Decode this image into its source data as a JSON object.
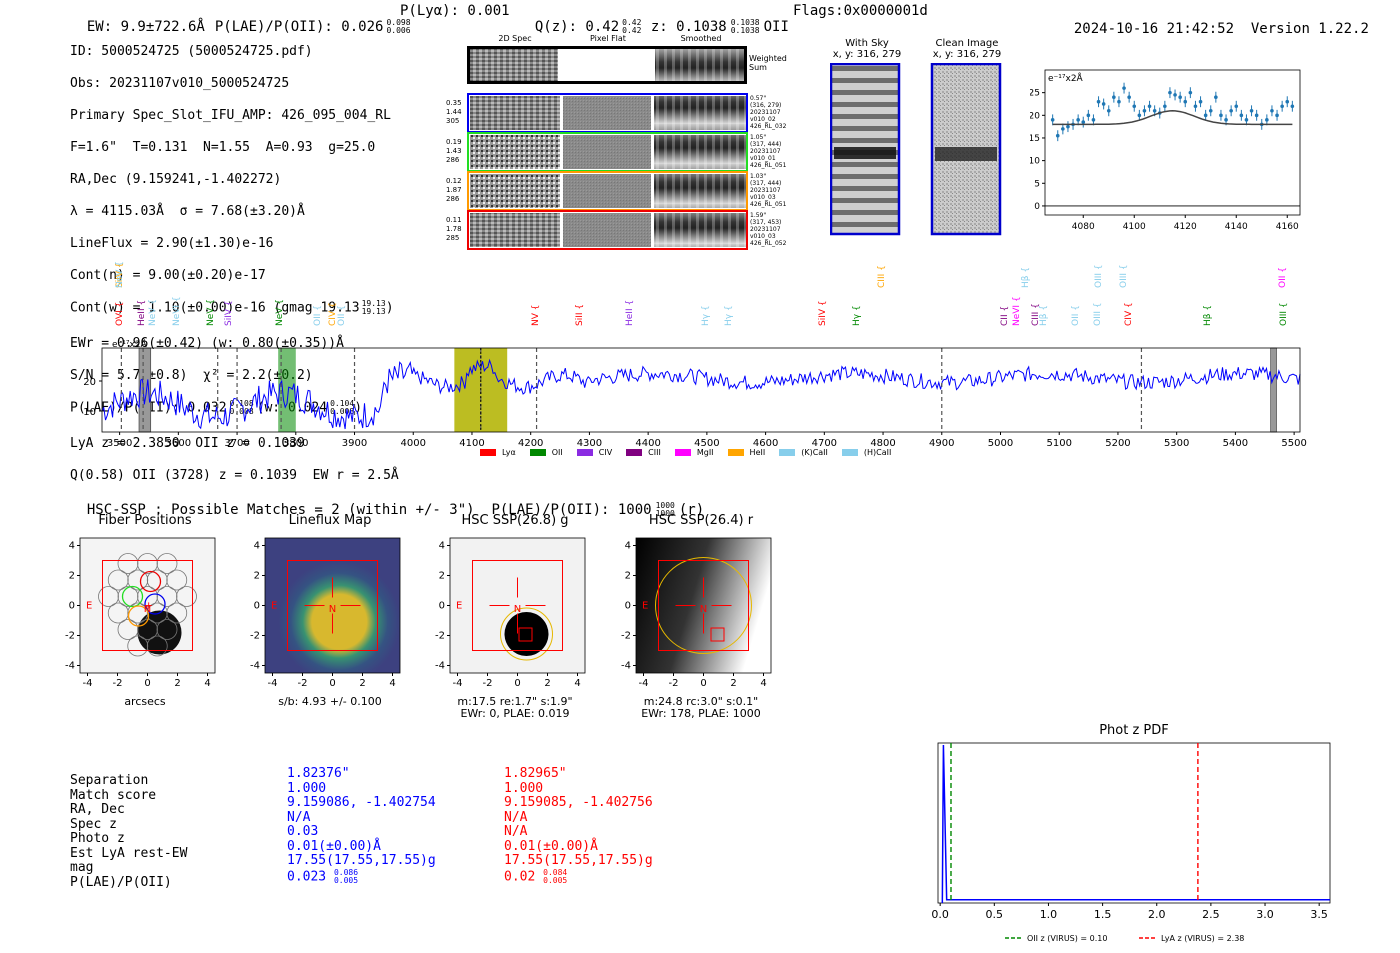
{
  "header": {
    "ew": "EW: 9.9±722.6Å",
    "plae_label": "P(LAE)/P(OII): 0.026",
    "plae_hi": "0.098",
    "plae_lo": "0.006",
    "plya": "P(Lyα): 0.001",
    "qz_label": "Q(z): 0.42",
    "qz_hi": "0.42",
    "qz_lo": "0.42",
    "z_label": "z: 0.1038",
    "z_hi": "0.1038",
    "z_lo": "0.1038",
    "z_line": "OII",
    "flags": "Flags:0x0000001d",
    "datetime": "2024-10-16 21:42:52",
    "version": "Version 1.22.2"
  },
  "info": {
    "id": "ID: 5000524725 (5000524725.pdf)",
    "obs": "Obs: 20231107v010_5000524725",
    "spec": "Primary Spec_Slot_IFU_AMP: 426_095_004_RL",
    "fit": "F=1.6\"  T=0.131  N=1.55  A=0.93  g=25.0",
    "radec": "RA,Dec (9.159241,-1.402272)",
    "lambda": "λ = 4115.03Å  σ = 7.68(±3.20)Å",
    "lineflux": "LineFlux = 2.90(±1.30)e-16",
    "contn": "Cont(n) = 9.00(±0.20)e-17",
    "contw": "Cont(w) = 1.10(±0.00)e-16 (gmag 19.13",
    "contw_hi": "19.13",
    "contw_lo": "19.13",
    "ewr": "EWr = 0.96(±0.42) (w: 0.80(±0.35))Å",
    "sn": "S/N = 5.7(±0.8)  χ² = 2.2(±0.2)",
    "plae": "P(LAE)/P(OII): 0.032",
    "plae_hi": "0.108",
    "plae_lo": "0.008",
    "plae_w": "(w: 0.024",
    "plae_w_hi": "0.104",
    "plae_w_lo": "0.008",
    "lya": "LyA z = 2.3850  OII z = 0.1039",
    "q": "Q(0.58) OII (3728) z = 0.1039  EW r = 2.5Å"
  },
  "cutouts": {
    "col_2d": "2D Spec",
    "col_flat": "Pixel Flat",
    "col_smooth": "Smoothed",
    "weighted": "Weighted Sum",
    "rows": [
      {
        "left": [
          "0.35",
          "1.44",
          "305"
        ],
        "right": [
          "0.57\"",
          "(316, 279)",
          "20231107",
          "v010_02",
          "426_RL_032"
        ],
        "color": "#0000ee"
      },
      {
        "left": [
          "0.19",
          "1.43",
          "286"
        ],
        "right": [
          "1.05\"",
          "(317, 444)",
          "20231107",
          "v010_01",
          "426_RL_051"
        ],
        "color": "#22dd22"
      },
      {
        "left": [
          "0.12",
          "1.87",
          "286"
        ],
        "right": [
          "1.03\"",
          "(317, 444)",
          "20231107",
          "v010_03",
          "426_RL_051"
        ],
        "color": "#ff9900"
      },
      {
        "left": [
          "0.11",
          "1.78",
          "285"
        ],
        "right": [
          "1.59\"",
          "(317, 453)",
          "20231107",
          "v010_03",
          "426_RL_052"
        ],
        "color": "#ee0000"
      }
    ],
    "with_sky": "With Sky",
    "with_sky_xy": "x, y: 316, 279",
    "clean": "Clean Image",
    "clean_xy": "x, y: 316, 279"
  },
  "chart_data": [
    {
      "type": "scatter",
      "title": "",
      "ylabel": "e⁻¹⁷x2Å",
      "xlim": [
        4065,
        4165
      ],
      "ylim": [
        -2,
        30
      ],
      "xticks": [
        "4080",
        "4100",
        "4120",
        "4140",
        "4160"
      ],
      "yticks": [
        "0",
        "5",
        "10",
        "15",
        "20",
        "25"
      ],
      "points_x": [
        4068,
        4070,
        4072,
        4074,
        4076,
        4078,
        4080,
        4082,
        4084,
        4086,
        4088,
        4090,
        4092,
        4094,
        4096,
        4098,
        4100,
        4102,
        4104,
        4106,
        4108,
        4110,
        4112,
        4114,
        4116,
        4118,
        4120,
        4122,
        4124,
        4126,
        4128,
        4130,
        4132,
        4134,
        4136,
        4138,
        4140,
        4142,
        4144,
        4146,
        4148,
        4150,
        4152,
        4154,
        4156,
        4158,
        4160,
        4162
      ],
      "points_y": [
        19,
        15.5,
        17,
        17.5,
        18,
        19,
        18.5,
        20,
        19,
        23,
        22.5,
        21,
        24,
        23,
        26,
        24,
        22,
        20,
        21,
        22,
        21,
        20.5,
        22,
        25,
        24.5,
        24,
        23,
        25,
        22,
        23,
        20,
        21,
        24,
        20,
        19,
        21,
        22,
        20,
        19,
        21,
        20,
        18,
        19,
        21,
        20,
        22,
        23,
        22
      ],
      "model_peak": 4115,
      "model_base": 18.0,
      "model_amp": 3.0,
      "model_sigma": 8.5
    },
    {
      "type": "line",
      "xlim": [
        3470,
        5510
      ],
      "ylim": [
        3,
        31
      ],
      "ylabel": "e⁻¹⁷x2Å",
      "xticks": [
        "3500",
        "3600",
        "3700",
        "3800",
        "3900",
        "4000",
        "4100",
        "4200",
        "4300",
        "4400",
        "4500",
        "4600",
        "4700",
        "4800",
        "4900",
        "5000",
        "5100",
        "5200",
        "5300",
        "5400",
        "5500"
      ],
      "yticks": [
        "10",
        "20"
      ],
      "legend": [
        {
          "label": "Lyα",
          "color": "#ff0000"
        },
        {
          "label": "OII",
          "color": "#008800"
        },
        {
          "label": "CIV",
          "color": "#8a2be2"
        },
        {
          "label": "CIII",
          "color": "#800080"
        },
        {
          "label": "MgII",
          "color": "#ff00ff"
        },
        {
          "label": "HeII",
          "color": "#ffa500"
        },
        {
          "label": "(K)CaII",
          "color": "#87ceeb"
        },
        {
          "label": "(H)CaII",
          "color": "#87ceeb"
        }
      ],
      "line_labels": [
        {
          "label": "OVI",
          "x": 3503,
          "color": "#ff0000",
          "row": 1
        },
        {
          "label": "SiIV",
          "x": 3503,
          "color": "#ffa500",
          "row": 0
        },
        {
          "label": "NeV",
          "x": 3503,
          "color": "#87ceeb",
          "row": 0
        },
        {
          "label": "HeII",
          "x": 3540,
          "color": "#800080",
          "row": 1
        },
        {
          "label": "NeV",
          "x": 3558,
          "color": "#87ceeb",
          "row": 1
        },
        {
          "label": "NeVI",
          "x": 3600,
          "color": "#87ceeb",
          "row": 1
        },
        {
          "label": "NeV",
          "x": 3658,
          "color": "#008800",
          "row": 1
        },
        {
          "label": "SiIV",
          "x": 3688,
          "color": "#8a2be2",
          "row": 1
        },
        {
          "label": "NeV",
          "x": 3775,
          "color": "#008800",
          "row": 1
        },
        {
          "label": "OII",
          "x": 3840,
          "color": "#87ceeb",
          "row": 1
        },
        {
          "label": "CIV",
          "x": 3865,
          "color": "#ffa500",
          "row": 1
        },
        {
          "label": "OII",
          "x": 3880,
          "color": "#87ceeb",
          "row": 1
        },
        {
          "label": "NV",
          "x": 4210,
          "color": "#ff0000",
          "row": 1
        },
        {
          "label": "SiII",
          "x": 4285,
          "color": "#ff0000",
          "row": 1
        },
        {
          "label": "HeII",
          "x": 4370,
          "color": "#8a2be2",
          "row": 1
        },
        {
          "label": "Hγ",
          "x": 4500,
          "color": "#87ceeb",
          "row": 1
        },
        {
          "label": "Hγ",
          "x": 4540,
          "color": "#87ceeb",
          "row": 1
        },
        {
          "label": "SiIV",
          "x": 4700,
          "color": "#ff0000",
          "row": 1
        },
        {
          "label": "Hγ",
          "x": 4758,
          "color": "#008800",
          "row": 1
        },
        {
          "label": "CIII",
          "x": 4800,
          "color": "#ffa500",
          "row": 0
        },
        {
          "label": "CII",
          "x": 5010,
          "color": "#800080",
          "row": 1
        },
        {
          "label": "NeVI",
          "x": 5030,
          "color": "#ff00ff",
          "row": 1
        },
        {
          "label": "Hβ",
          "x": 5045,
          "color": "#87ceeb",
          "row": 0
        },
        {
          "label": "CIII",
          "x": 5063,
          "color": "#800080",
          "row": 1
        },
        {
          "label": "Hβ",
          "x": 5075,
          "color": "#87ceeb",
          "row": 1
        },
        {
          "label": "OII",
          "x": 5130,
          "color": "#87ceeb",
          "row": 1
        },
        {
          "label": "OIII",
          "x": 5167,
          "color": "#87ceeb",
          "row": 1
        },
        {
          "label": "OIII",
          "x": 5170,
          "color": "#87ceeb",
          "row": 0
        },
        {
          "label": "OIII",
          "x": 5212,
          "color": "#87ceeb",
          "row": 0
        },
        {
          "label": "CIV",
          "x": 5220,
          "color": "#ff0000",
          "row": 1
        },
        {
          "label": "Hβ",
          "x": 5355,
          "color": "#008800",
          "row": 1
        },
        {
          "label": "OII",
          "x": 5483,
          "color": "#ff00ff",
          "row": 0
        },
        {
          "label": "OIII",
          "x": 5484,
          "color": "#008800",
          "row": 1
        }
      ],
      "emission_x": 4115,
      "dashed_lines": [
        3503,
        3540,
        3667,
        3700,
        3775,
        3900,
        4115,
        4210,
        4900,
        5240
      ],
      "box_yellow": [
        4070,
        4160
      ],
      "box_green": [
        3770,
        3800
      ],
      "hatch_gray": [
        [
          3533,
          3553
        ],
        [
          5460,
          5470
        ]
      ]
    },
    {
      "type": "line",
      "title": "Phot z PDF",
      "xlim": [
        -0.02,
        3.6
      ],
      "ylim": [
        0,
        1
      ],
      "xticks": [
        "0.0",
        "0.5",
        "1.0",
        "1.5",
        "2.0",
        "2.5",
        "3.0",
        "3.5"
      ],
      "legend": [
        {
          "label": "OII z (VIRUS) = 0.10",
          "color": "#008800",
          "style": "dashed"
        },
        {
          "label": "LyA z (VIRUS) = 2.38",
          "color": "#ff0000",
          "style": "dashed"
        }
      ],
      "oii_z": 0.1,
      "lya_z": 2.38,
      "pdf_peak_x": 0.03
    }
  ],
  "hsc": {
    "summary": "HSC-SSP : Possible Matches = 2 (within +/- 3\")  P(LAE)/P(OII): 1000",
    "summary_hi": "1000",
    "summary_lo": "1000",
    "summary_band": "(r)",
    "panels": [
      {
        "title": "Fiber Positions",
        "caption1": "arcsecs",
        "caption2": ""
      },
      {
        "title": "Lineflux Map",
        "caption1": "s/b: 4.93 +/- 0.100",
        "caption2": ""
      },
      {
        "title": "HSC SSP(26.8) g",
        "caption1": "m:17.5  re:1.7\"  s:1.9\"",
        "caption2": "EWr: 0, PLAE: 0.019"
      },
      {
        "title": "HSC SSP(26.4) r",
        "caption1": "m:24.8 rc:3.0\"  s:0.1\"",
        "caption2": "EWr: 178, PLAE: 1000"
      }
    ],
    "ticks": [
      "-4",
      "-2",
      "0",
      "2",
      "4"
    ],
    "north": "N",
    "east": "E"
  },
  "matches": {
    "labels": [
      "Separation",
      "Match score",
      "RA, Dec",
      "Spec z",
      "Photo z",
      "Est LyA rest-EW",
      "mag",
      "P(LAE)/P(OII)"
    ],
    "blue": [
      "1.82376\"",
      "1.000",
      "9.159086, -1.402754",
      "N/A",
      "0.03",
      "0.01(±0.00)Å",
      "17.55(17.55,17.55)g",
      "0.023"
    ],
    "blue_plae_hi": "0.086",
    "blue_plae_lo": "0.005",
    "red": [
      "1.82965\"",
      "1.000",
      "9.159085, -1.402756",
      "N/A",
      "N/A",
      "0.01(±0.00)Å",
      "17.55(17.55,17.55)g",
      "0.02"
    ],
    "red_plae_hi": "0.084",
    "red_plae_lo": "0.005"
  }
}
